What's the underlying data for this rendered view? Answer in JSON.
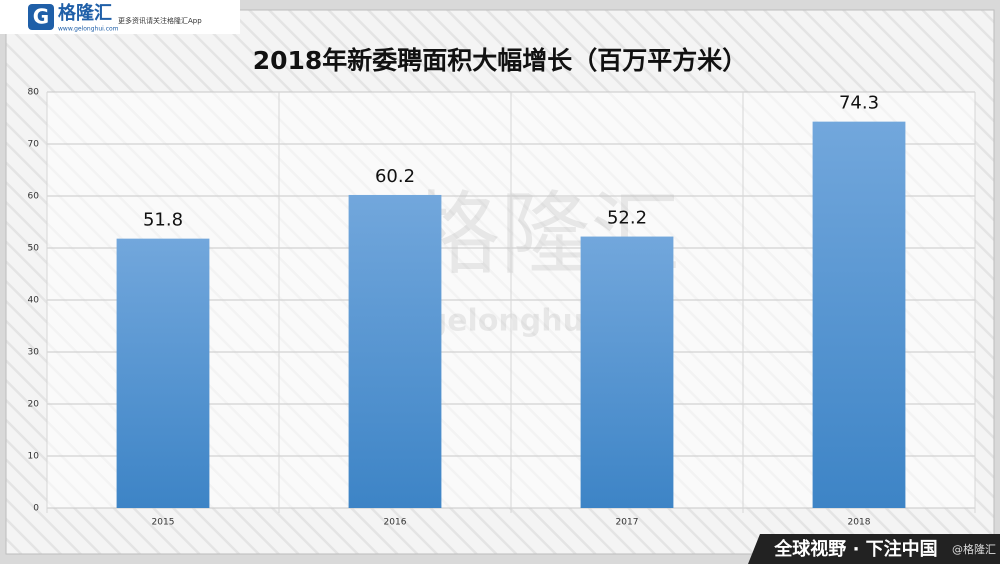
{
  "header": {
    "logo_text": "格隆汇",
    "logo_url": "www.gelonghui.com",
    "slogan": "更多资讯请关注格隆汇App"
  },
  "watermark": {
    "cn": "格隆汇",
    "en": "gelonghui"
  },
  "footer": {
    "slogan": "全球视野 · 下注中国",
    "handle": "@格隆汇"
  },
  "chart_data": {
    "type": "bar",
    "title": "2018年新委聘面积大幅增长（百万平方米）",
    "categories": [
      "2015",
      "2016",
      "2017",
      "2018"
    ],
    "values": [
      51.8,
      60.2,
      52.2,
      74.3
    ],
    "color": "#5b9bd5",
    "ylim": [
      0,
      80
    ],
    "yticks": [
      0,
      10,
      20,
      30,
      40,
      50,
      60,
      70,
      80
    ],
    "grid": true
  }
}
